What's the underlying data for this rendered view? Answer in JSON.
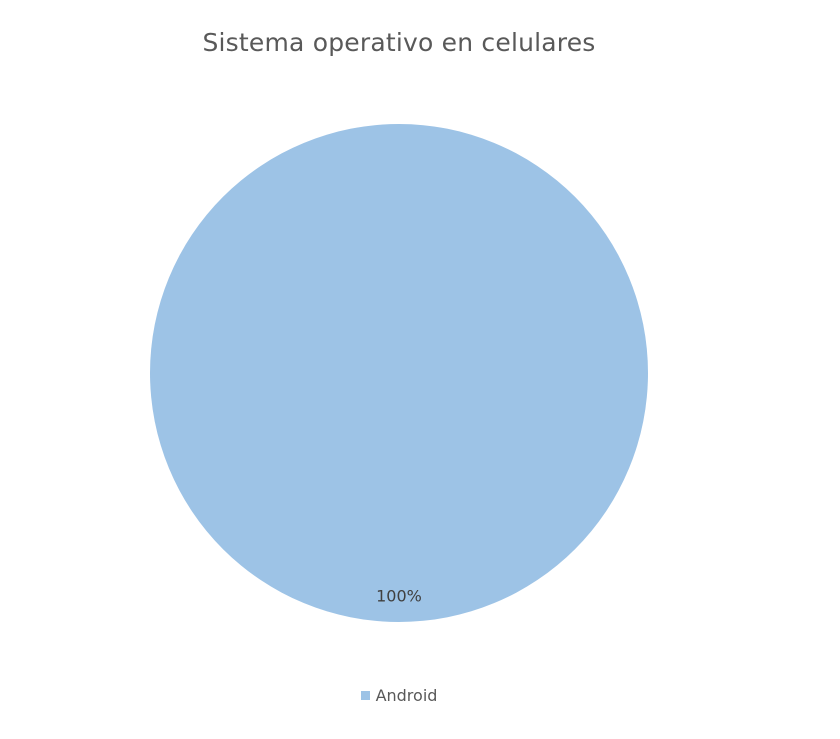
{
  "chart_data": {
    "type": "pie",
    "title": "Sistema operativo en celulares",
    "categories": [
      "Android"
    ],
    "values": [
      100
    ],
    "data_labels": [
      "100%"
    ],
    "colors": [
      "#9dc3e6"
    ],
    "legend_position": "bottom",
    "label_color": "#404040"
  }
}
